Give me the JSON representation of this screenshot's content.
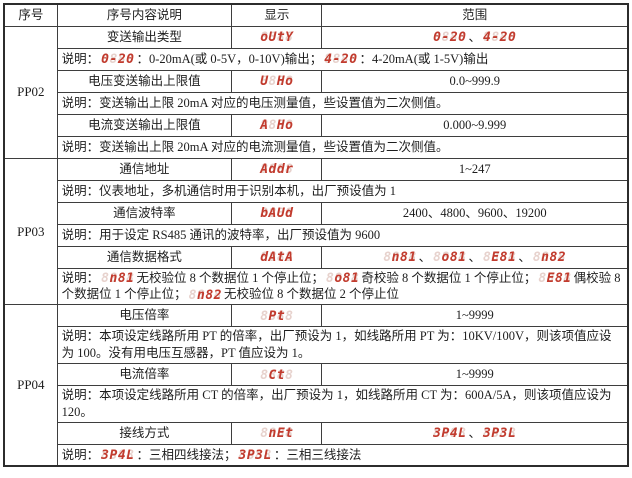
{
  "colors": {
    "seg_lit": "#c23b2e",
    "seg_ghost": "#e7d2cd",
    "border": "#3e3e3e",
    "background": "#ffffff"
  },
  "table": {
    "headers": [
      "序号",
      "序号内容说明",
      "显示",
      "范围"
    ],
    "seg_ghost_pattern": "8888",
    "rows": [
      {
        "kind": "param",
        "group": "PP02",
        "group_span": 6,
        "name": "变送输出类型",
        "display": "oUtY",
        "range": [
          {
            "seg": "0-20"
          },
          {
            "text": "、"
          },
          {
            "seg": "4-20"
          }
        ]
      },
      {
        "kind": "note",
        "parts": [
          {
            "text": "说明："
          },
          {
            "seg": "0-20"
          },
          {
            "text": "：0-20mA(或 0-5V，0-10V)输出；"
          },
          {
            "seg": "4-20"
          },
          {
            "text": "：4-20mA(或 1-5V)输出"
          }
        ]
      },
      {
        "kind": "param",
        "name": "电压变送输出上限值",
        "display": "U Ho",
        "range": [
          {
            "text": "0.0~999.9"
          }
        ]
      },
      {
        "kind": "note",
        "parts": [
          {
            "text": "说明：变送输出上限 20mA 对应的电压测量值，些设置值为二次侧值。"
          }
        ]
      },
      {
        "kind": "param",
        "name": "电流变送输出上限值",
        "display": "A Ho",
        "range": [
          {
            "text": "0.000~9.999"
          }
        ]
      },
      {
        "kind": "note",
        "parts": [
          {
            "text": "说明：变送输出上限 20mA 对应的电流测量值，些设置值为二次侧值。"
          }
        ]
      },
      {
        "kind": "param",
        "group": "PP03",
        "group_span": 6,
        "name": "通信地址",
        "display": "Addr",
        "range": [
          {
            "text": "1~247"
          }
        ]
      },
      {
        "kind": "note",
        "parts": [
          {
            "text": "说明：仪表地址，多机通信时用于识别本机，出厂预设值为 1"
          }
        ]
      },
      {
        "kind": "param",
        "name": "通信波特率",
        "display": "bAUd",
        "range": [
          {
            "text": "2400、4800、9600、19200"
          }
        ]
      },
      {
        "kind": "note",
        "parts": [
          {
            "text": "说明：用于设定 RS485 通讯的波特率，出厂预设值为 9600"
          }
        ]
      },
      {
        "kind": "param",
        "name": "通信数据格式",
        "display": "dAtA",
        "range": [
          {
            "seg": " n81"
          },
          {
            "text": "、"
          },
          {
            "seg": " o81"
          },
          {
            "text": "、"
          },
          {
            "seg": " E81"
          },
          {
            "text": "、"
          },
          {
            "seg": " n82"
          }
        ]
      },
      {
        "kind": "note",
        "parts": [
          {
            "text": "说明："
          },
          {
            "seg": " n81"
          },
          {
            "text": "无校验位 8 个数据位 1 个停止位；"
          },
          {
            "seg": " o81"
          },
          {
            "text": "奇校验 8 个数据位 1 个停止位；"
          },
          {
            "seg": " E81"
          },
          {
            "text": "偶校验 8 个数据位 1 个停止位；"
          },
          {
            "seg": " n82"
          },
          {
            "text": "无校验位 8 个数据位 2 个停止位"
          }
        ]
      },
      {
        "kind": "param",
        "group": "PP04",
        "group_span": 6,
        "name": "电压倍率",
        "display": " Pt ",
        "range": [
          {
            "text": "1~9999"
          }
        ]
      },
      {
        "kind": "note",
        "parts": [
          {
            "text": "说明：本项设定线路所用 PT 的倍率，出厂预设为 1，如线路所用 PT 为：10KV/100V，则该项值应设为 100。没有用电压互感器，PT 值应设为 1。"
          }
        ]
      },
      {
        "kind": "param",
        "name": "电流倍率",
        "display": " Ct ",
        "range": [
          {
            "text": "1~9999"
          }
        ]
      },
      {
        "kind": "note",
        "parts": [
          {
            "text": "说明：本项设定线路所用 CT 的倍率，出厂预设为 1，如线路所用 CT 为：600A/5A，则该项值应设为 120。"
          }
        ]
      },
      {
        "kind": "param",
        "name": "接线方式",
        "display": " nEt",
        "range": [
          {
            "seg": "3P4L"
          },
          {
            "text": "、"
          },
          {
            "seg": "3P3L"
          }
        ]
      },
      {
        "kind": "note",
        "parts": [
          {
            "text": "说明："
          },
          {
            "seg": "3P4L"
          },
          {
            "text": "：三相四线接法；"
          },
          {
            "seg": "3P3L"
          },
          {
            "text": "：三相三线接法"
          }
        ]
      }
    ]
  }
}
